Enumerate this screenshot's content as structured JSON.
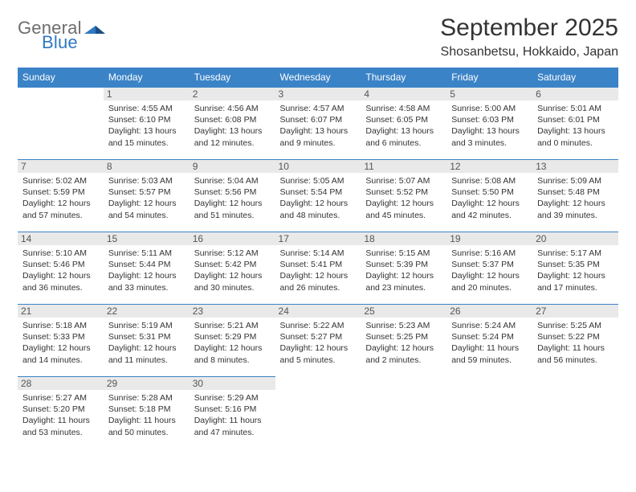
{
  "logo": {
    "word1": "General",
    "word2": "Blue"
  },
  "title": "September 2025",
  "location": "Shosanbetsu, Hokkaido, Japan",
  "colors": {
    "header_bg": "#3b83c7",
    "header_text": "#ffffff",
    "daynum_bg": "#e9e9e9",
    "daynum_text": "#555555",
    "rule": "#3b83c7",
    "logo_gray": "#6d6d6d",
    "logo_blue": "#2f79c2",
    "body_text": "#333333",
    "page_bg": "#ffffff"
  },
  "weekdays": [
    "Sunday",
    "Monday",
    "Tuesday",
    "Wednesday",
    "Thursday",
    "Friday",
    "Saturday"
  ],
  "weeks": [
    [
      null,
      {
        "n": "1",
        "sr": "4:55 AM",
        "ss": "6:10 PM",
        "dl": "13 hours and 15 minutes."
      },
      {
        "n": "2",
        "sr": "4:56 AM",
        "ss": "6:08 PM",
        "dl": "13 hours and 12 minutes."
      },
      {
        "n": "3",
        "sr": "4:57 AM",
        "ss": "6:07 PM",
        "dl": "13 hours and 9 minutes."
      },
      {
        "n": "4",
        "sr": "4:58 AM",
        "ss": "6:05 PM",
        "dl": "13 hours and 6 minutes."
      },
      {
        "n": "5",
        "sr": "5:00 AM",
        "ss": "6:03 PM",
        "dl": "13 hours and 3 minutes."
      },
      {
        "n": "6",
        "sr": "5:01 AM",
        "ss": "6:01 PM",
        "dl": "13 hours and 0 minutes."
      }
    ],
    [
      {
        "n": "7",
        "sr": "5:02 AM",
        "ss": "5:59 PM",
        "dl": "12 hours and 57 minutes."
      },
      {
        "n": "8",
        "sr": "5:03 AM",
        "ss": "5:57 PM",
        "dl": "12 hours and 54 minutes."
      },
      {
        "n": "9",
        "sr": "5:04 AM",
        "ss": "5:56 PM",
        "dl": "12 hours and 51 minutes."
      },
      {
        "n": "10",
        "sr": "5:05 AM",
        "ss": "5:54 PM",
        "dl": "12 hours and 48 minutes."
      },
      {
        "n": "11",
        "sr": "5:07 AM",
        "ss": "5:52 PM",
        "dl": "12 hours and 45 minutes."
      },
      {
        "n": "12",
        "sr": "5:08 AM",
        "ss": "5:50 PM",
        "dl": "12 hours and 42 minutes."
      },
      {
        "n": "13",
        "sr": "5:09 AM",
        "ss": "5:48 PM",
        "dl": "12 hours and 39 minutes."
      }
    ],
    [
      {
        "n": "14",
        "sr": "5:10 AM",
        "ss": "5:46 PM",
        "dl": "12 hours and 36 minutes."
      },
      {
        "n": "15",
        "sr": "5:11 AM",
        "ss": "5:44 PM",
        "dl": "12 hours and 33 minutes."
      },
      {
        "n": "16",
        "sr": "5:12 AM",
        "ss": "5:42 PM",
        "dl": "12 hours and 30 minutes."
      },
      {
        "n": "17",
        "sr": "5:14 AM",
        "ss": "5:41 PM",
        "dl": "12 hours and 26 minutes."
      },
      {
        "n": "18",
        "sr": "5:15 AM",
        "ss": "5:39 PM",
        "dl": "12 hours and 23 minutes."
      },
      {
        "n": "19",
        "sr": "5:16 AM",
        "ss": "5:37 PM",
        "dl": "12 hours and 20 minutes."
      },
      {
        "n": "20",
        "sr": "5:17 AM",
        "ss": "5:35 PM",
        "dl": "12 hours and 17 minutes."
      }
    ],
    [
      {
        "n": "21",
        "sr": "5:18 AM",
        "ss": "5:33 PM",
        "dl": "12 hours and 14 minutes."
      },
      {
        "n": "22",
        "sr": "5:19 AM",
        "ss": "5:31 PM",
        "dl": "12 hours and 11 minutes."
      },
      {
        "n": "23",
        "sr": "5:21 AM",
        "ss": "5:29 PM",
        "dl": "12 hours and 8 minutes."
      },
      {
        "n": "24",
        "sr": "5:22 AM",
        "ss": "5:27 PM",
        "dl": "12 hours and 5 minutes."
      },
      {
        "n": "25",
        "sr": "5:23 AM",
        "ss": "5:25 PM",
        "dl": "12 hours and 2 minutes."
      },
      {
        "n": "26",
        "sr": "5:24 AM",
        "ss": "5:24 PM",
        "dl": "11 hours and 59 minutes."
      },
      {
        "n": "27",
        "sr": "5:25 AM",
        "ss": "5:22 PM",
        "dl": "11 hours and 56 minutes."
      }
    ],
    [
      {
        "n": "28",
        "sr": "5:27 AM",
        "ss": "5:20 PM",
        "dl": "11 hours and 53 minutes."
      },
      {
        "n": "29",
        "sr": "5:28 AM",
        "ss": "5:18 PM",
        "dl": "11 hours and 50 minutes."
      },
      {
        "n": "30",
        "sr": "5:29 AM",
        "ss": "5:16 PM",
        "dl": "11 hours and 47 minutes."
      },
      null,
      null,
      null,
      null
    ]
  ],
  "labels": {
    "sunrise": "Sunrise:",
    "sunset": "Sunset:",
    "daylight": "Daylight:"
  }
}
